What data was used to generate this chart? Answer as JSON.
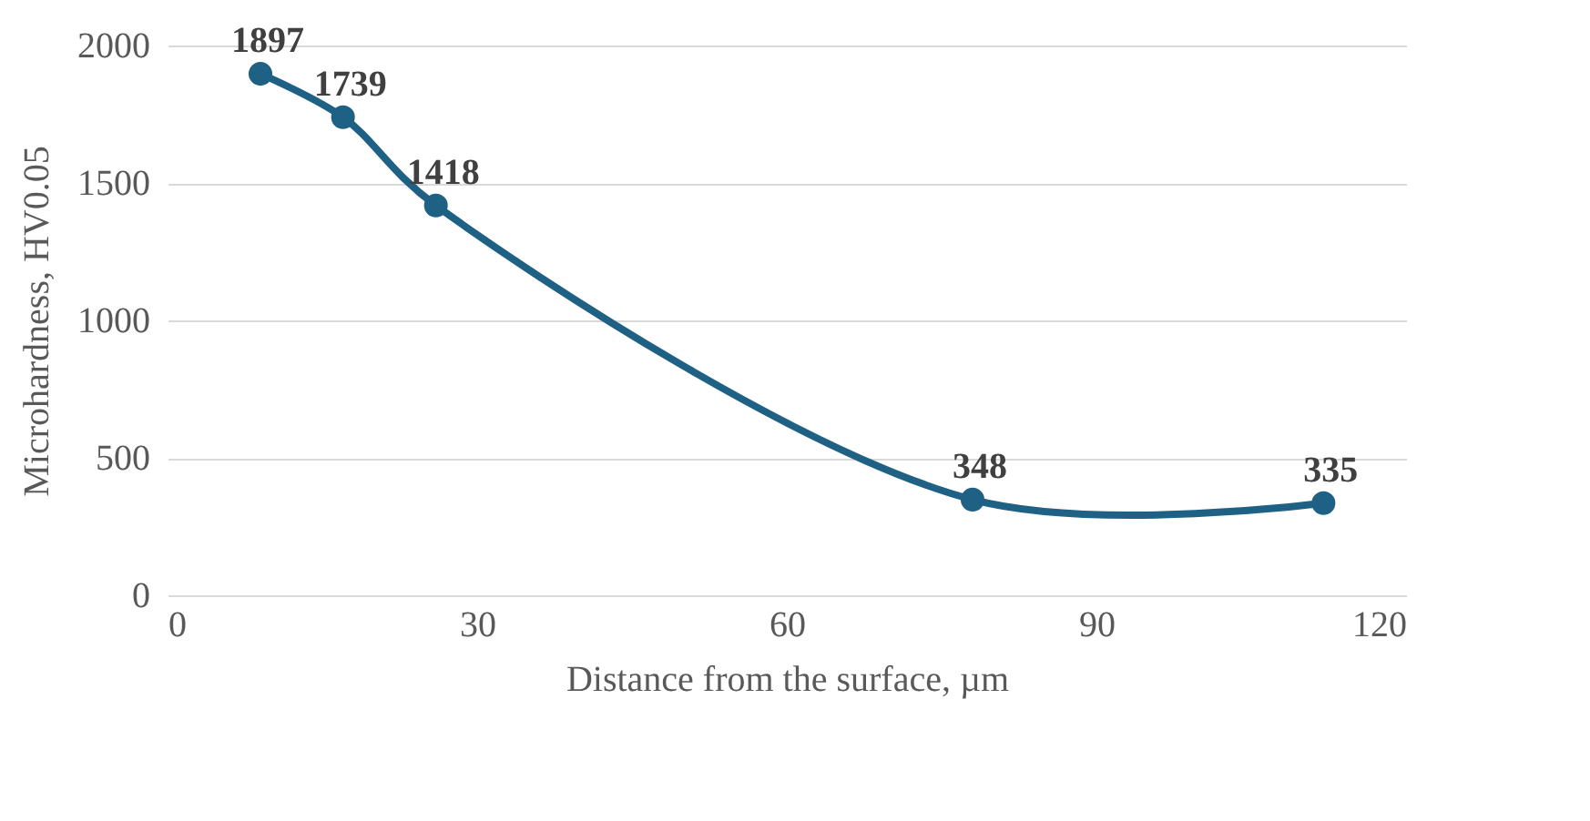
{
  "chart_data": {
    "type": "line",
    "xlabel": "Distance from the surface, µm",
    "ylabel": "Microhardness, HV0.05",
    "x": [
      9,
      17,
      26,
      78,
      112
    ],
    "series": [
      {
        "color": "#1f6185",
        "values": [
          1897,
          1739,
          1418,
          348,
          335
        ]
      }
    ],
    "xlim": [
      0,
      120
    ],
    "xticks": [
      0,
      30,
      60,
      90,
      120
    ],
    "ylim": [
      0,
      2000
    ],
    "yticks": [
      0,
      500,
      1000,
      1500,
      2000
    ],
    "grid": "y",
    "marker": "circle",
    "line_style": "solid",
    "data_labels": true
  }
}
